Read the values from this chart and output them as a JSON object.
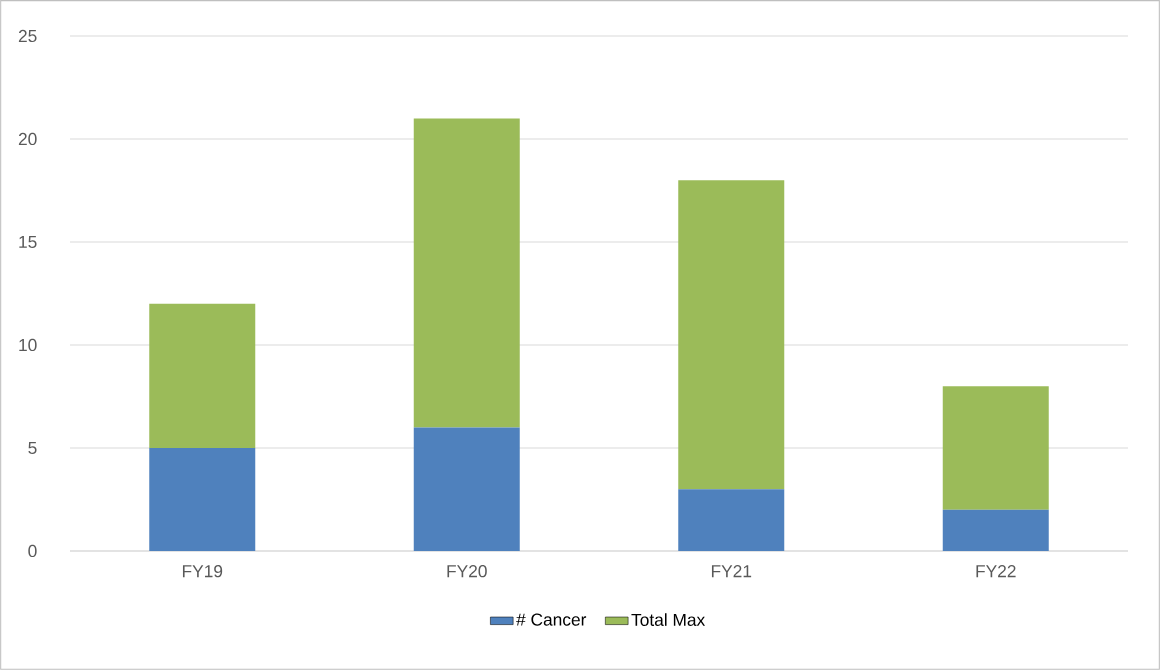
{
  "chart_data": {
    "type": "bar",
    "stacked": true,
    "categories": [
      "FY19",
      "FY20",
      "FY21",
      "FY22"
    ],
    "series": [
      {
        "name": "# Cancer",
        "color": "#4f81bd",
        "values": [
          5,
          6,
          3,
          2
        ]
      },
      {
        "name": "Total Max",
        "color": "#9bbb59",
        "values": [
          7,
          15,
          15,
          6
        ]
      }
    ],
    "ylim": [
      0,
      25
    ],
    "yticks": [
      0,
      5,
      10,
      15,
      20,
      25
    ],
    "grid": "y",
    "legend": "bottom"
  }
}
